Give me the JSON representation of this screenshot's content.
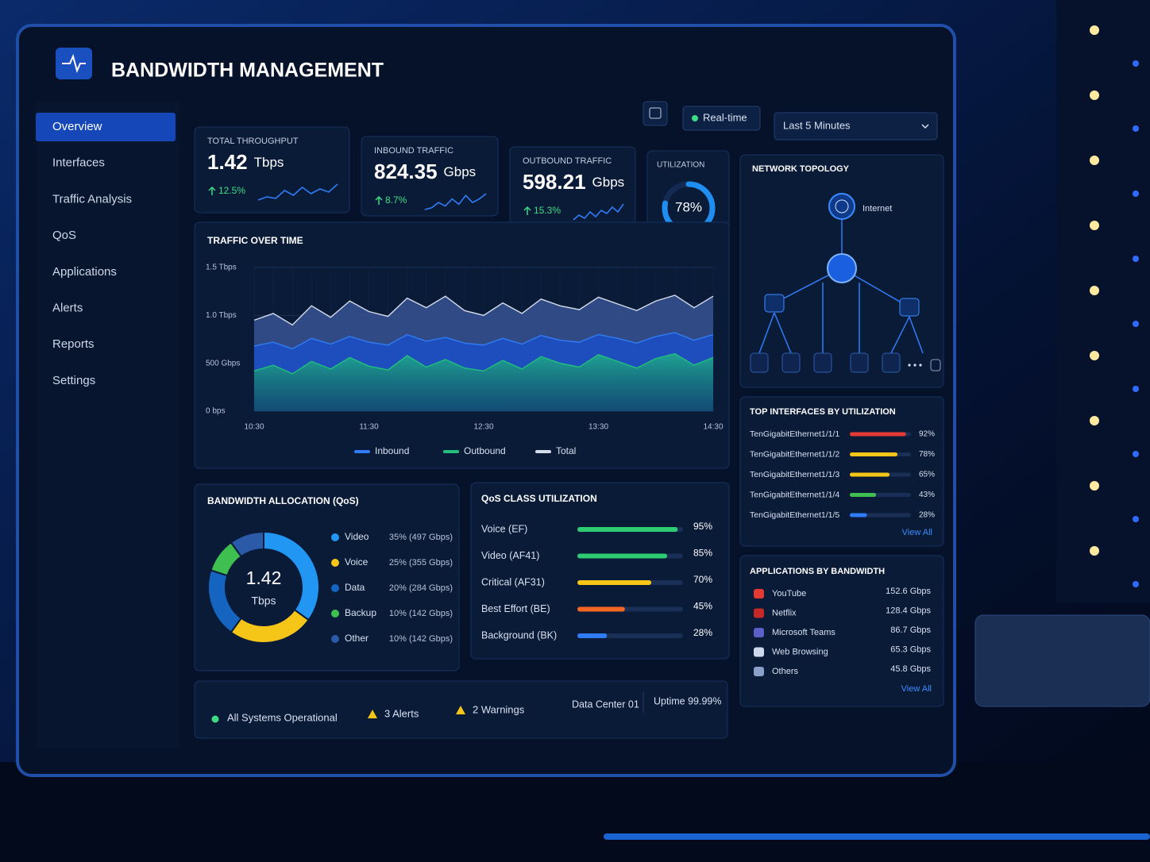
{
  "header": {
    "title": "BANDWIDTH MANAGEMENT",
    "mode": "Real-time",
    "range": "Last 5 Minutes"
  },
  "nav": [
    "Overview",
    "Interfaces",
    "Traffic Analysis",
    "QoS",
    "Applications",
    "Alerts",
    "Reports",
    "Settings"
  ],
  "kpis": [
    {
      "label": "TOTAL THROUGHPUT",
      "value": "1.42",
      "unit": "Tbps",
      "change": "12.5%",
      "trend": [
        3,
        4,
        3.5,
        6,
        4.5,
        7,
        5,
        6.5,
        5.5,
        8
      ]
    },
    {
      "label": "INBOUND TRAFFIC",
      "value": "824.35",
      "unit": "Gbps",
      "change": "8.7%",
      "trend": [
        3,
        3.5,
        5,
        4,
        6,
        4.5,
        7,
        5,
        6,
        7.5
      ]
    },
    {
      "label": "OUTBOUND TRAFFIC",
      "value": "598.21",
      "unit": "Gbps",
      "change": "15.3%",
      "trend": [
        3,
        4.5,
        3.5,
        5.5,
        4,
        6,
        5,
        7,
        5.5,
        8
      ]
    }
  ],
  "utilization": {
    "title": "UTILIZATION",
    "value": 78,
    "label": "78%"
  },
  "traffic_chart": {
    "type": "area",
    "title": "TRAFFIC OVER TIME",
    "categories": [
      "10:30",
      null,
      null,
      null,
      null,
      null,
      "11:30",
      null,
      null,
      null,
      null,
      null,
      "12:30",
      null,
      null,
      null,
      null,
      null,
      "13:30",
      null,
      null,
      null,
      null,
      null,
      "14:30"
    ],
    "series": [
      {
        "name": "Inbound",
        "color": "#2f7cf6",
        "values": [
          680,
          720,
          650,
          760,
          700,
          780,
          720,
          690,
          800,
          730,
          770,
          710,
          690,
          760,
          700,
          790,
          740,
          720,
          800,
          760,
          710,
          780,
          820,
          740,
          800
        ]
      },
      {
        "name": "Outbound",
        "color": "#22c07a",
        "values": [
          420,
          480,
          390,
          520,
          440,
          560,
          470,
          430,
          580,
          460,
          540,
          450,
          420,
          530,
          440,
          570,
          500,
          460,
          590,
          520,
          450,
          550,
          600,
          480,
          560
        ]
      },
      {
        "name": "Total",
        "color": "#d5dcea",
        "values": [
          950,
          1020,
          900,
          1100,
          980,
          1150,
          1040,
          990,
          1180,
          1080,
          1200,
          1050,
          1000,
          1130,
          1020,
          1170,
          1100,
          1060,
          1190,
          1120,
          1050,
          1150,
          1210,
          1080,
          1200
        ]
      }
    ],
    "ylim": [
      0,
      1500
    ],
    "yticks": [
      {
        "value": 0,
        "label": "0 bps"
      },
      {
        "value": 500,
        "label": "500 Gbps"
      },
      {
        "value": 1000,
        "label": "1.0 Tbps"
      },
      {
        "value": 1500,
        "label": "1.5 Tbps"
      }
    ],
    "grid": true
  },
  "topology": {
    "title": "NETWORK TOPOLOGY",
    "internet": "Internet"
  },
  "allocation": {
    "type": "pie",
    "title": "BANDWIDTH ALLOCATION (QoS)",
    "total": "1.42",
    "unit": "Tbps",
    "items": [
      {
        "name": "Video",
        "value": 35,
        "label": "35% (497 Gbps)",
        "color": "#2196f3"
      },
      {
        "name": "Voice",
        "value": 25,
        "label": "25% (355 Gbps)",
        "color": "#f5c518"
      },
      {
        "name": "Data",
        "value": 20,
        "label": "20% (284 Gbps)",
        "color": "#1565c0"
      },
      {
        "name": "Backup",
        "value": 10,
        "label": "10% (142 Gbps)",
        "color": "#3fbf4f"
      },
      {
        "name": "Other",
        "value": 10,
        "label": "10% (142 Gbps)",
        "color": "#2a5aa8"
      }
    ]
  },
  "qos": {
    "title": "QoS CLASS UTILIZATION",
    "items": [
      {
        "name": "Voice (EF)",
        "value": 95,
        "label": "95%",
        "color": "#2ecc71"
      },
      {
        "name": "Video (AF41)",
        "value": 85,
        "label": "85%",
        "color": "#2ecc71"
      },
      {
        "name": "Critical (AF31)",
        "value": 70,
        "label": "70%",
        "color": "#f5c518"
      },
      {
        "name": "Best Effort (BE)",
        "value": 45,
        "label": "45%",
        "color": "#f26522"
      },
      {
        "name": "Background (BK)",
        "value": 28,
        "label": "28%",
        "color": "#2f7cf6"
      }
    ]
  },
  "interfaces": {
    "title": "TOP INTERFACES BY UTILIZATION",
    "link": "View All",
    "items": [
      {
        "name": "TenGigabitEthernet1/1/1",
        "value": 92,
        "label": "92%",
        "color": "#e53935"
      },
      {
        "name": "TenGigabitEthernet1/1/2",
        "value": 78,
        "label": "78%",
        "color": "#f5c518"
      },
      {
        "name": "TenGigabitEthernet1/1/3",
        "value": 65,
        "label": "65%",
        "color": "#f5c518"
      },
      {
        "name": "TenGigabitEthernet1/1/4",
        "value": 43,
        "label": "43%",
        "color": "#3fbf4f"
      },
      {
        "name": "TenGigabitEthernet1/1/5",
        "value": 28,
        "label": "28%",
        "color": "#2f7cf6"
      }
    ]
  },
  "applications": {
    "title": "APPLICATIONS BY BANDWIDTH",
    "link": "View All",
    "items": [
      {
        "name": "YouTube",
        "value": "152.6 Gbps"
      },
      {
        "name": "Netflix",
        "value": "128.4 Gbps"
      },
      {
        "name": "Microsoft Teams",
        "value": "86.7 Gbps"
      },
      {
        "name": "Web Browsing",
        "value": "65.3 Gbps"
      },
      {
        "name": "Others",
        "value": "45.8 Gbps"
      }
    ]
  },
  "status": {
    "operational": "All Systems Operational",
    "alerts": "3 Alerts",
    "warnings": "2 Warnings",
    "location": "Data Center 01",
    "uptime": "Uptime 99.99%"
  }
}
